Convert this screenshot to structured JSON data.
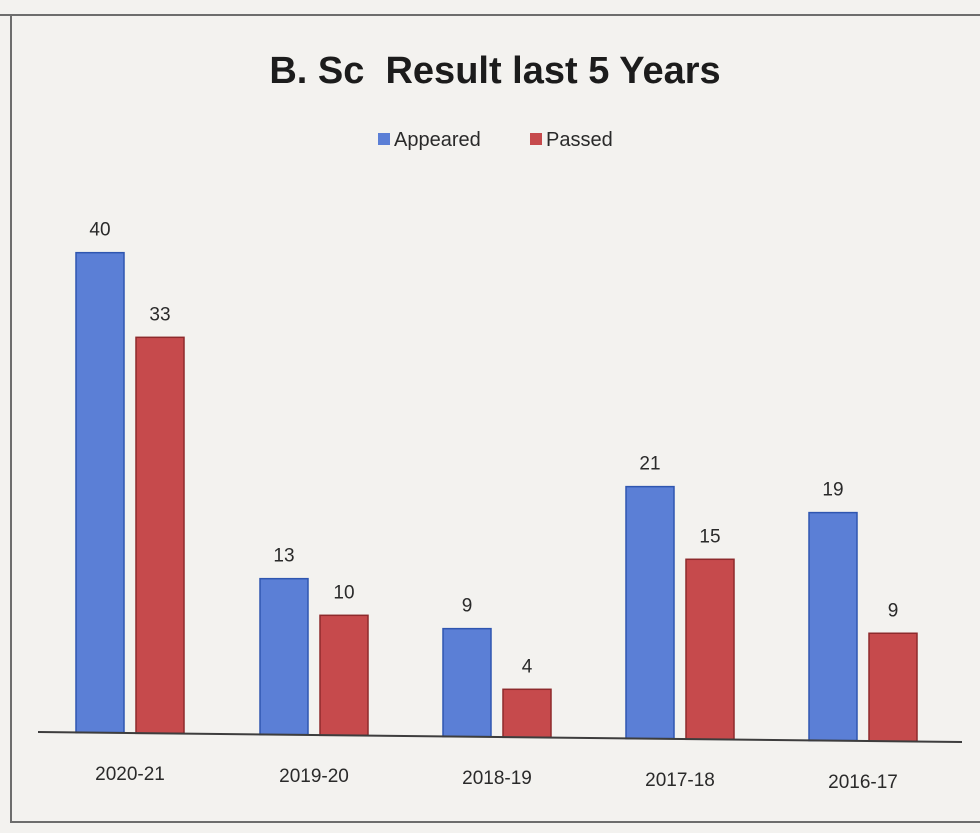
{
  "chart_data": {
    "type": "bar",
    "title": "B. Sc  Result last 5 Years",
    "categories": [
      "2020-21",
      "2019-20",
      "2018-19",
      "2017-18",
      "2016-17"
    ],
    "series": [
      {
        "name": "Appeared",
        "values": [
          40,
          13,
          9,
          21,
          19
        ],
        "color": "#5b7fd6"
      },
      {
        "name": "Passed",
        "values": [
          33,
          10,
          4,
          15,
          9
        ],
        "color": "#c64a4c"
      }
    ],
    "xlabel": "",
    "ylabel": "",
    "ylim": [
      0,
      40
    ],
    "legend_position": "top-center",
    "grid": false,
    "data_labels": true
  }
}
